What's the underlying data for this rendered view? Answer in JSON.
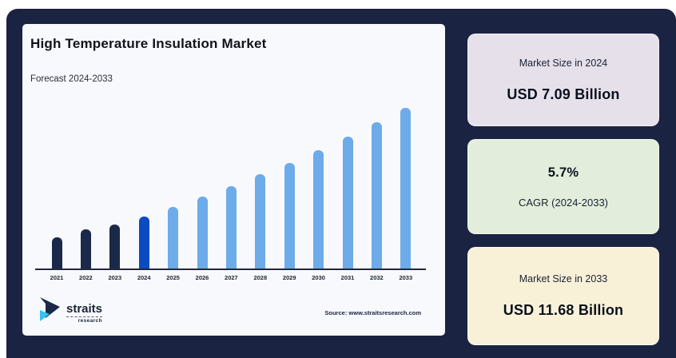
{
  "frame": {
    "page_background": "#ffffff",
    "background": "#1b2342"
  },
  "chart": {
    "title": "High Temperature Insulation Market",
    "subtitle": "Forecast 2024-2033",
    "source": "Source: www.straitsresearch.com",
    "panel_background": "#f8f9fd",
    "logo": {
      "name": "straits",
      "subtext": "research",
      "mark_primary_color": "#1b2848",
      "mark_accent_color": "#35c3f0"
    }
  },
  "chart_data": {
    "type": "bar",
    "title": "High Temperature Insulation Market",
    "subtitle": "Forecast 2024-2033",
    "unit": "USD Billion",
    "categories": [
      "2021",
      "2022",
      "2023",
      "2024",
      "2025",
      "2026",
      "2027",
      "2028",
      "2029",
      "2030",
      "2031",
      "2032",
      "2033"
    ],
    "values": [
      6.2,
      6.55,
      6.75,
      7.09,
      7.49,
      7.92,
      8.37,
      8.85,
      9.35,
      9.88,
      10.45,
      11.05,
      11.68
    ],
    "known_points": {
      "2024": 7.09,
      "2033": 11.68,
      "cagr_pct": 5.7
    },
    "roles": [
      "historical",
      "historical",
      "historical",
      "base_year",
      "forecast",
      "forecast",
      "forecast",
      "forecast",
      "forecast",
      "forecast",
      "forecast",
      "forecast",
      "forecast"
    ],
    "role_colors": {
      "historical": "#1b2949",
      "base_year": "#0a4bc2",
      "forecast": "#6dabe9"
    },
    "y_axis_visible": false,
    "grid": false,
    "legend": false,
    "x_axis_line_color": "#23293a",
    "y_baseline": 4.88
  },
  "cards": [
    {
      "title": "Market Size in 2024",
      "value": "USD 7.09 Billion",
      "bg": "#e6e0eb"
    },
    {
      "title": "5.7%",
      "value": "CAGR (2024-2033)",
      "bg": "#e2eedb"
    },
    {
      "title": "Market Size in 2033",
      "value": "USD 11.68 Billion",
      "bg": "#f8f1d8"
    }
  ]
}
